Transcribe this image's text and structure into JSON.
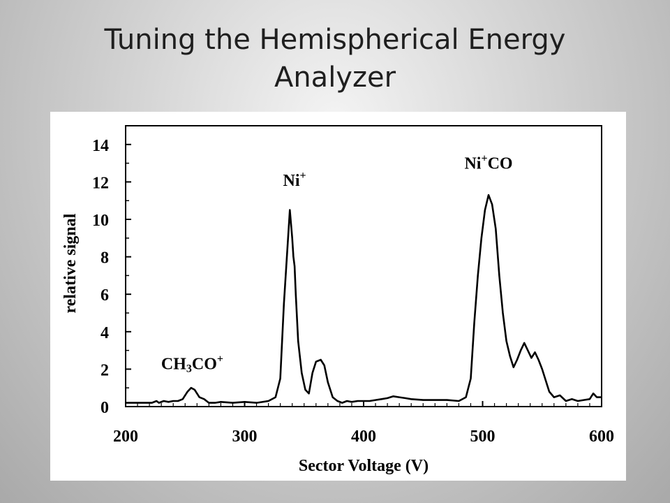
{
  "slide": {
    "title_line1": "Tuning the Hemispherical Energy",
    "title_line2": "Analyzer"
  },
  "chart_data": {
    "type": "line",
    "title": "",
    "xlabel": "Sector Voltage (V)",
    "ylabel": "relative signal",
    "xlim": [
      200,
      600
    ],
    "ylim": [
      0,
      15
    ],
    "xticks": [
      200,
      300,
      400,
      500,
      600
    ],
    "yticks": [
      0,
      2,
      4,
      6,
      8,
      10,
      12,
      14
    ],
    "grid": false,
    "legend": "none",
    "line_color": "#000000",
    "annotations": [
      {
        "text": "CH3CO+",
        "base": "CH",
        "sub": "3",
        "rest": "CO",
        "sup": "+",
        "x": 256,
        "y": 2.0
      },
      {
        "text": "Ni+",
        "base": "Ni",
        "sup": "+",
        "x": 342,
        "y": 11.8
      },
      {
        "text": "Ni+CO",
        "base": "Ni",
        "sup": "+",
        "rest": "CO",
        "x": 505,
        "y": 12.7
      }
    ],
    "series": [
      {
        "x": [
          200,
          212,
          222,
          226,
          228,
          232,
          236,
          240,
          244,
          248,
          252,
          255,
          258,
          262,
          266,
          270,
          275,
          280,
          290,
          300,
          310,
          320,
          326,
          330,
          333,
          336,
          338,
          340,
          341,
          342,
          343,
          345,
          348,
          351,
          354,
          357,
          360,
          364,
          367,
          370,
          374,
          378,
          382,
          386,
          390,
          395,
          400,
          405,
          410,
          415,
          420,
          425,
          430,
          435,
          440,
          450,
          460,
          470,
          480,
          486,
          490,
          493,
          496,
          499,
          502,
          505,
          508,
          511,
          514,
          517,
          520,
          523,
          526,
          529,
          532,
          535,
          538,
          541,
          544,
          547,
          550,
          553,
          556,
          560,
          565,
          570,
          575,
          580,
          585,
          590,
          593,
          596,
          600
        ],
        "y": [
          0.2,
          0.2,
          0.2,
          0.3,
          0.2,
          0.3,
          0.25,
          0.3,
          0.3,
          0.4,
          0.8,
          1.0,
          0.9,
          0.5,
          0.4,
          0.2,
          0.2,
          0.25,
          0.2,
          0.25,
          0.2,
          0.3,
          0.5,
          1.5,
          5.5,
          8.5,
          10.5,
          9.0,
          8.0,
          7.5,
          6.0,
          3.5,
          1.8,
          0.9,
          0.7,
          1.8,
          2.4,
          2.5,
          2.2,
          1.3,
          0.5,
          0.3,
          0.2,
          0.3,
          0.25,
          0.3,
          0.3,
          0.3,
          0.35,
          0.4,
          0.45,
          0.55,
          0.5,
          0.45,
          0.4,
          0.35,
          0.35,
          0.35,
          0.3,
          0.5,
          1.5,
          4.5,
          7.0,
          9.0,
          10.5,
          11.3,
          10.8,
          9.5,
          7.0,
          5.0,
          3.5,
          2.7,
          2.1,
          2.5,
          3.0,
          3.4,
          3.0,
          2.6,
          2.9,
          2.5,
          2.0,
          1.4,
          0.8,
          0.5,
          0.6,
          0.3,
          0.4,
          0.3,
          0.35,
          0.4,
          0.7,
          0.5,
          0.5
        ]
      }
    ]
  }
}
